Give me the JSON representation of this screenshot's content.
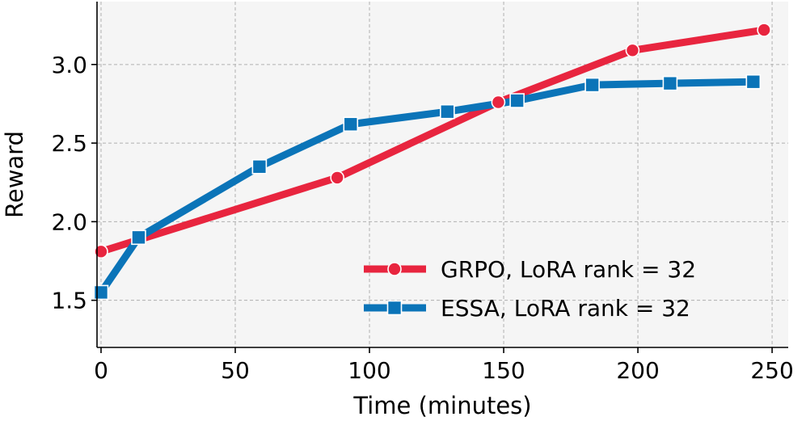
{
  "chart_data": {
    "type": "line",
    "title": "",
    "xlabel": "Time (minutes)",
    "ylabel": "Reward",
    "xlim": [
      -1.5,
      256
    ],
    "ylim": [
      1.2,
      3.4
    ],
    "xticks": [
      0,
      50,
      100,
      150,
      200,
      250
    ],
    "yticks": [
      1.5,
      2.0,
      2.5,
      3.0
    ],
    "xtick_labels": [
      "0",
      "50",
      "100",
      "150",
      "200",
      "250"
    ],
    "ytick_labels": [
      "1.5",
      "2.0",
      "2.5",
      "3.0"
    ],
    "grid": true,
    "legend_position": "lower-right",
    "series": [
      {
        "name": "GRPO, LoRA rank = 32",
        "color": "#e8253f",
        "marker": "circle",
        "x": [
          0,
          88,
          148,
          198,
          247
        ],
        "y": [
          1.81,
          2.28,
          2.76,
          3.09,
          3.22
        ]
      },
      {
        "name": "ESSA, LoRA rank = 32",
        "color": "#0b74b8",
        "marker": "square",
        "x": [
          0,
          14,
          59,
          93,
          129,
          155,
          183,
          212,
          243
        ],
        "y": [
          1.55,
          1.9,
          2.35,
          2.62,
          2.7,
          2.77,
          2.87,
          2.88,
          2.89
        ]
      }
    ]
  }
}
